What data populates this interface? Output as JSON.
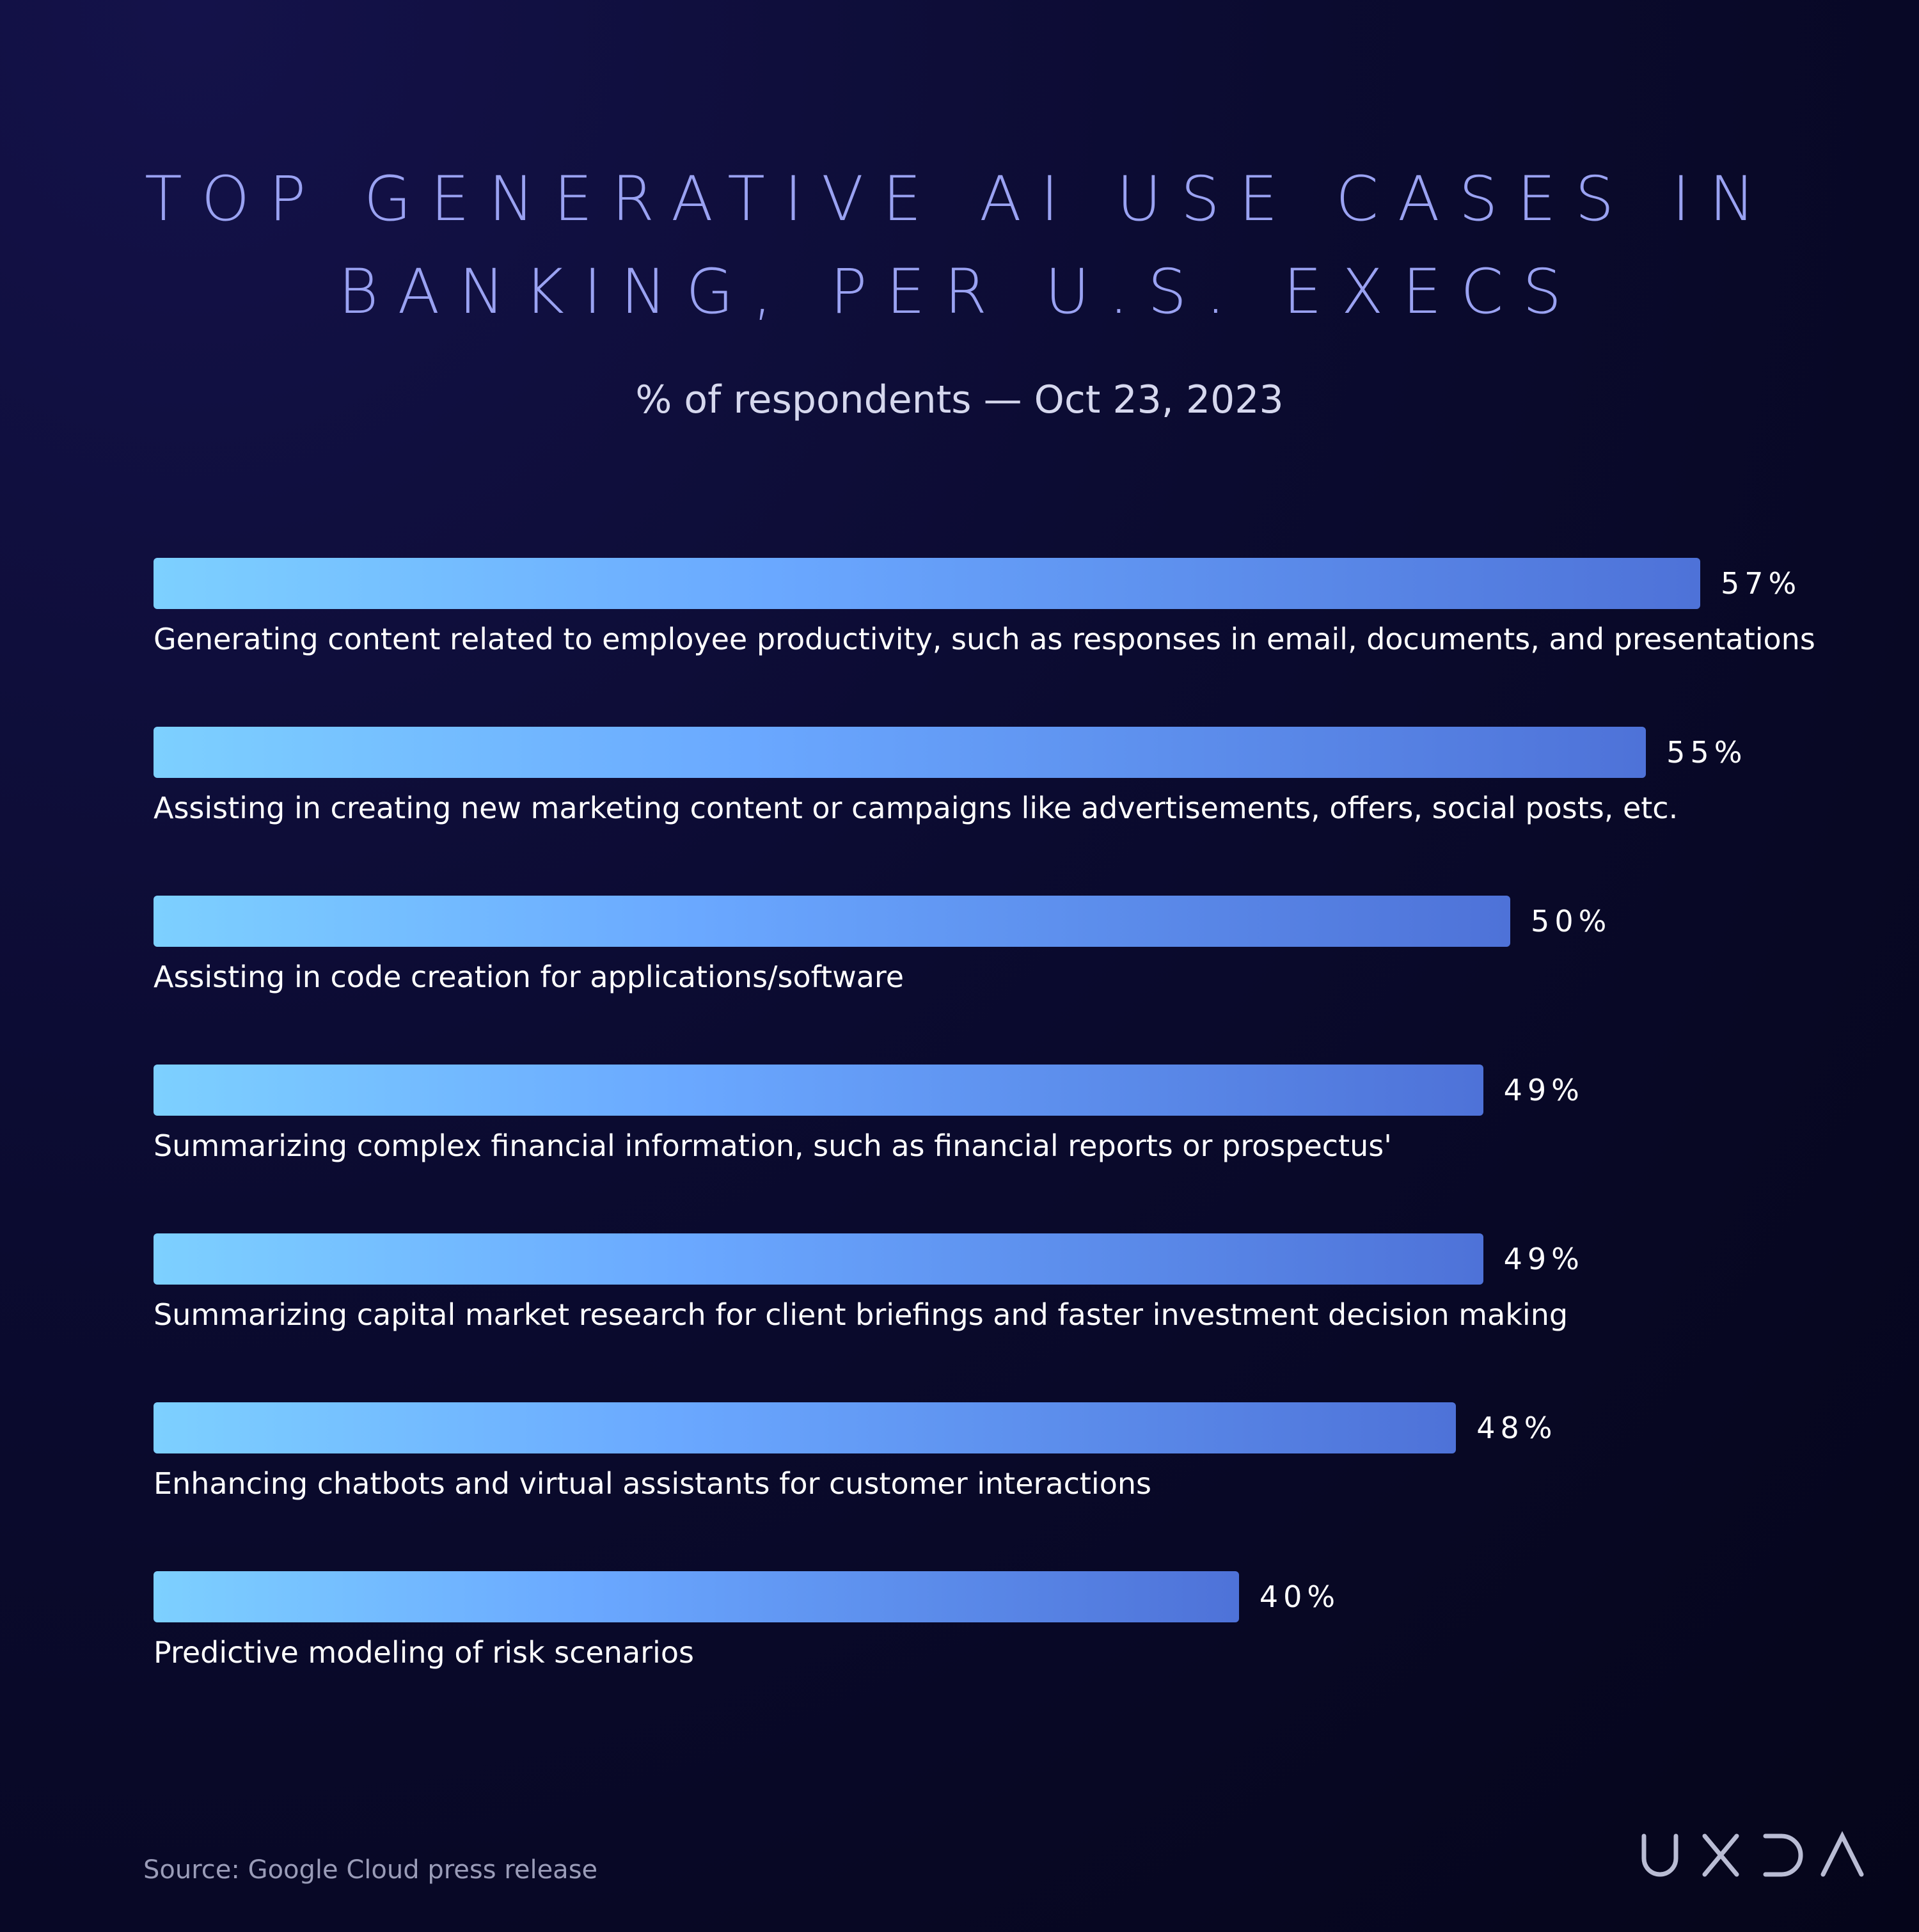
{
  "chart_data": {
    "type": "bar",
    "orientation": "horizontal",
    "title_lines": [
      "TOP GENERATIVE AI USE CASES IN",
      "BANKING, PER U.S. EXECS"
    ],
    "subtitle": "% of respondents — Oct 23, 2023",
    "categories": [
      "Generating content related to employee productivity, such as responses in email, documents, and presentations",
      "Assisting in creating new marketing content or campaigns like advertisements, offers, social posts, etc.",
      "Assisting in code creation for applications/software",
      "Summarizing complex financial information, such as financial reports or prospectus'",
      "Summarizing capital market research for client briefings and faster investment decision making",
      "Enhancing chatbots and virtual assistants for customer interactions",
      "Predictive modeling of risk scenarios"
    ],
    "values": [
      57,
      55,
      50,
      49,
      49,
      48,
      40
    ],
    "value_labels": [
      "57%",
      "55%",
      "50%",
      "49%",
      "49%",
      "48%",
      "40%"
    ],
    "xlim": [
      0,
      57
    ],
    "grid": false,
    "legend": "none"
  },
  "footer": {
    "source": "Source: Google Cloud press release",
    "logo_name": "uxda-logo"
  },
  "colors": {
    "bar_start": "#7dd0ff",
    "bar_end": "#4e72d8",
    "title": "#9aa2f2",
    "background": "#0b0b30"
  }
}
